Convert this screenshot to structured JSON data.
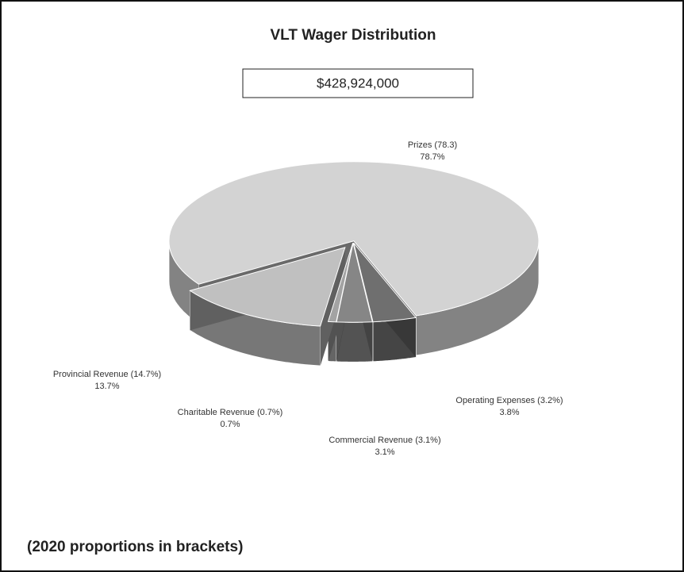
{
  "chart_data": {
    "type": "pie3d",
    "title": "VLT Wager Distribution",
    "subtitle": "$428,924,000",
    "footnote": "(2020 proportions in brackets)",
    "categories": [
      "Prizes (78.3)",
      "Operating Expenses (3.2%)",
      "Commercial Revenue (3.1%)",
      "Charitable Revenue (0.7%)",
      "Provincial Revenue (14.7%)"
    ],
    "values": [
      78.7,
      3.8,
      3.1,
      0.7,
      13.7
    ],
    "value_labels": [
      "78.7%",
      "3.8%",
      "3.1%",
      "0.7%",
      "13.7%"
    ],
    "colors": [
      "#d3d3d3",
      "#6f6f6f",
      "#868686",
      "#a3a3a3",
      "#c0c0c0"
    ]
  }
}
